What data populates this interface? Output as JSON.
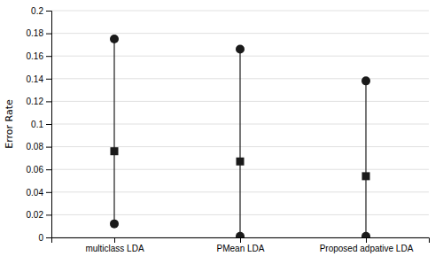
{
  "chart_data": {
    "type": "range",
    "categories": [
      "multiclass LDA",
      "PMean LDA",
      "Proposed adpative LDA"
    ],
    "high": [
      0.175,
      0.166,
      0.138
    ],
    "values": [
      0.076,
      0.067,
      0.054
    ],
    "low": [
      0.012,
      0.001,
      0.001
    ],
    "ylabel": "Error Rate",
    "ylim": [
      0,
      0.2
    ],
    "yticks": [
      0,
      0.02,
      0.04,
      0.06,
      0.08,
      0.1,
      0.12,
      0.14,
      0.16,
      0.18,
      0.2
    ],
    "color": "#1a1a1a",
    "grid": true
  }
}
